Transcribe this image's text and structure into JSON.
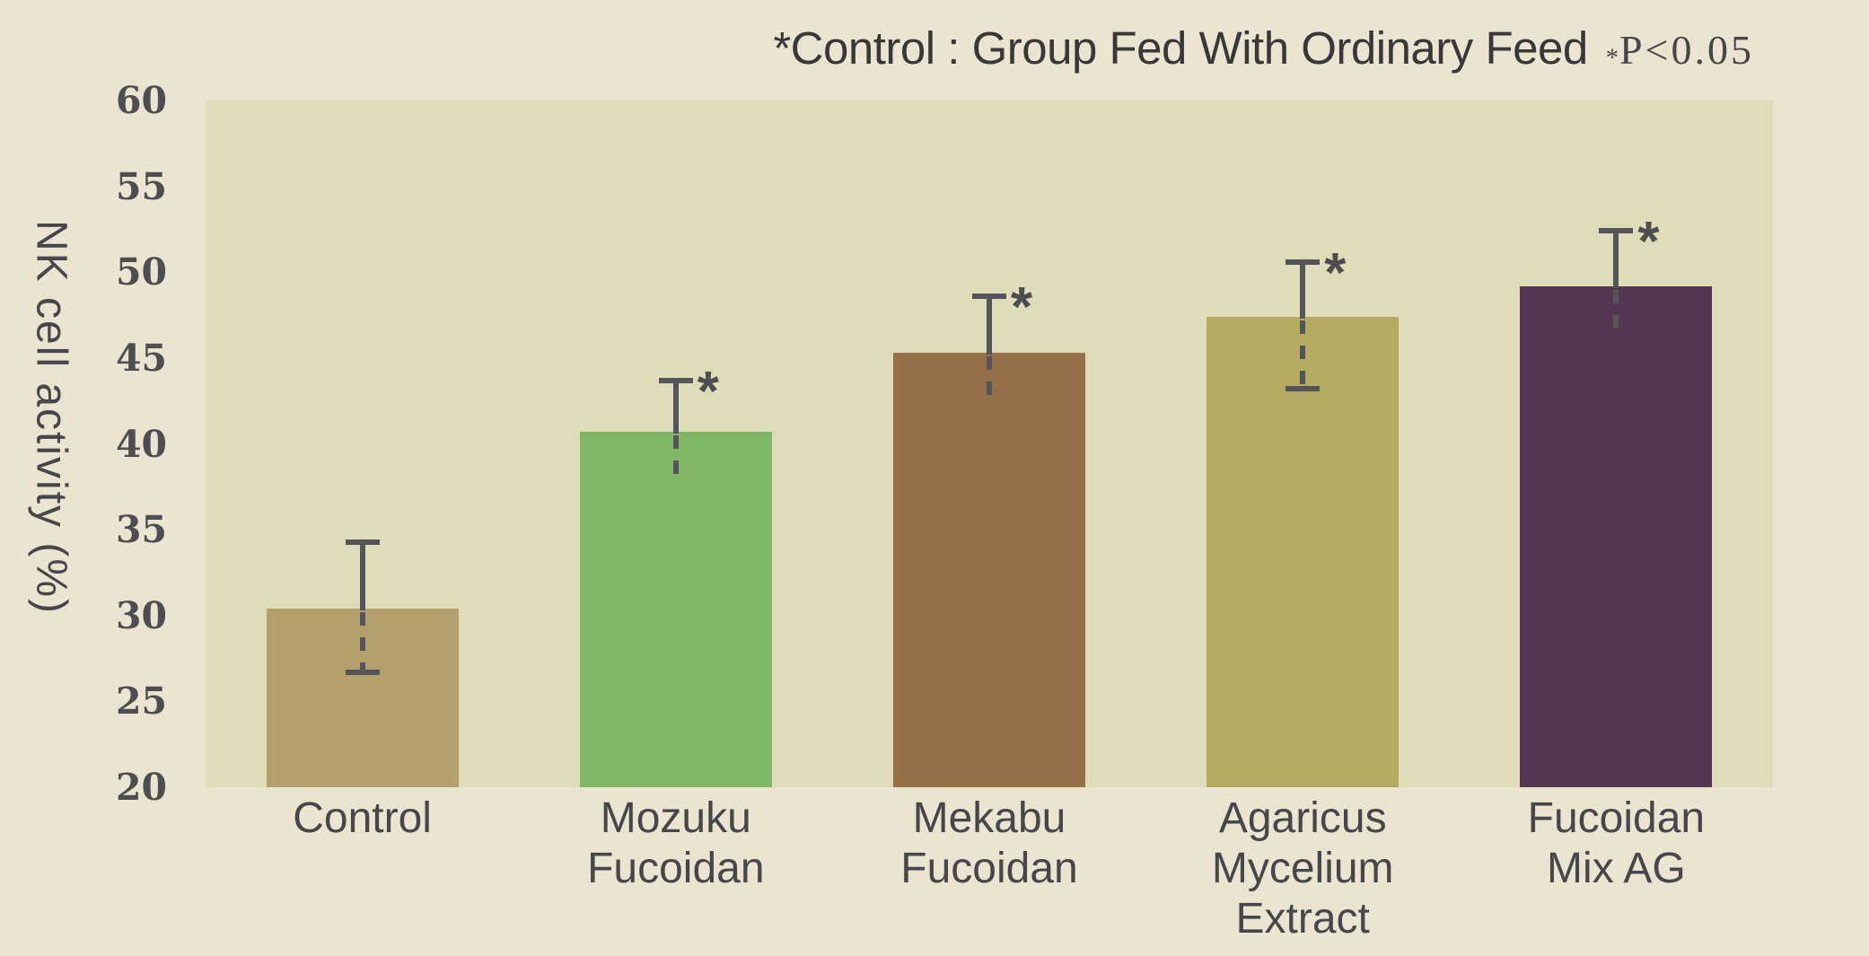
{
  "page": {
    "background": "#eae4d0",
    "plot_background": "#dfdcba"
  },
  "title": {
    "text": "*Control : Group Fed With Ordinary Feed",
    "p_note_star": "*",
    "p_note": "P<0.05"
  },
  "y_axis": {
    "label": "NK cell activity (%)"
  },
  "chart_data": {
    "type": "bar",
    "title": "*Control : Group Fed With Ordinary Feed",
    "annotation": "*P<0.05",
    "xlabel": "",
    "ylabel": "NK cell activity (%)",
    "ylim": [
      20,
      60
    ],
    "yticks": [
      60,
      55,
      50,
      45,
      40,
      35,
      30,
      25,
      20
    ],
    "grid": false,
    "legend": "none",
    "categories": [
      "Control",
      "Mozuku Fucoidan",
      "Mekabu Fucoidan",
      "Agaricus Mycelium Extract",
      "Fucoidan Mix AG"
    ],
    "category_lines": [
      [
        "Control"
      ],
      [
        "Mozuku",
        "Fucoidan"
      ],
      [
        "Mekabu",
        "Fucoidan"
      ],
      [
        "Agaricus",
        "Mycelium",
        "Extract"
      ],
      [
        "Fucoidan",
        "Mix AG"
      ]
    ],
    "values": [
      30.4,
      40.7,
      45.3,
      47.4,
      49.2
    ],
    "error_upper": [
      3.9,
      3.0,
      3.3,
      3.2,
      3.2
    ],
    "error_lower": [
      3.7,
      3.0,
      2.8,
      4.2,
      3.2
    ],
    "error_lower_cap": [
      true,
      false,
      false,
      true,
      false
    ],
    "significant": [
      false,
      true,
      true,
      true,
      true
    ],
    "sig_marker": "*",
    "bar_colors": [
      "#b3a06c",
      "#7fb767",
      "#957049",
      "#b5ab60",
      "#533750"
    ],
    "error_bar_style": {
      "upper": "solid",
      "lower": "dashed",
      "color": "#54545a",
      "cap_width": 38
    }
  }
}
